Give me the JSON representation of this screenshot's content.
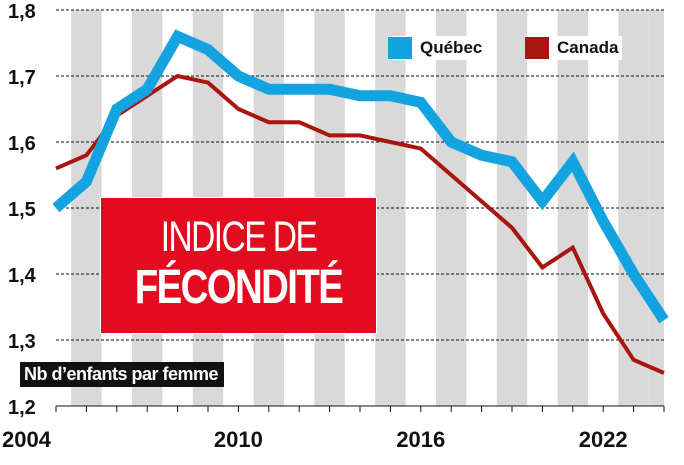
{
  "chart_data": {
    "type": "line",
    "title": "INDICE DE FÉCONDITÉ",
    "title_lines": [
      "INDICE DE",
      "FÉCONDITÉ"
    ],
    "xlabel": "",
    "ylabel": "Nb d’enfants par femme",
    "x": [
      2004,
      2005,
      2006,
      2007,
      2008,
      2009,
      2010,
      2011,
      2012,
      2013,
      2014,
      2015,
      2016,
      2017,
      2018,
      2019,
      2020,
      2021,
      2022,
      2023,
      2024
    ],
    "x_tick_labels": [
      "2004",
      "2010",
      "2016",
      "2022"
    ],
    "x_ticks": [
      2004,
      2010,
      2016,
      2022
    ],
    "xlim": [
      2004,
      2024
    ],
    "ylim": [
      1.2,
      1.8
    ],
    "y_ticks": [
      1.2,
      1.3,
      1.4,
      1.5,
      1.6,
      1.7,
      1.8
    ],
    "y_tick_labels": [
      "1,2",
      "1,3",
      "1,4",
      "1,5",
      "1,6",
      "1,7",
      "1,8"
    ],
    "background_stripes": "alternate years shaded",
    "series": [
      {
        "name": "Québec",
        "color": "#12a3e0",
        "values": [
          1.5,
          1.54,
          1.65,
          1.68,
          1.76,
          1.74,
          1.7,
          1.68,
          1.68,
          1.68,
          1.67,
          1.67,
          1.66,
          1.6,
          1.58,
          1.57,
          1.51,
          1.57,
          1.48,
          1.4,
          1.33
        ]
      },
      {
        "name": "Canada",
        "color": "#a8160f",
        "values": [
          1.56,
          1.58,
          1.64,
          1.67,
          1.7,
          1.69,
          1.65,
          1.63,
          1.63,
          1.61,
          1.61,
          1.6,
          1.59,
          1.55,
          1.51,
          1.47,
          1.41,
          1.44,
          1.34,
          1.27,
          1.25
        ]
      }
    ],
    "legend": "top-right"
  },
  "colors": {
    "stripe": "#d9d9d9",
    "title_bg": "#e30c1e",
    "label_bg": "#111111"
  }
}
